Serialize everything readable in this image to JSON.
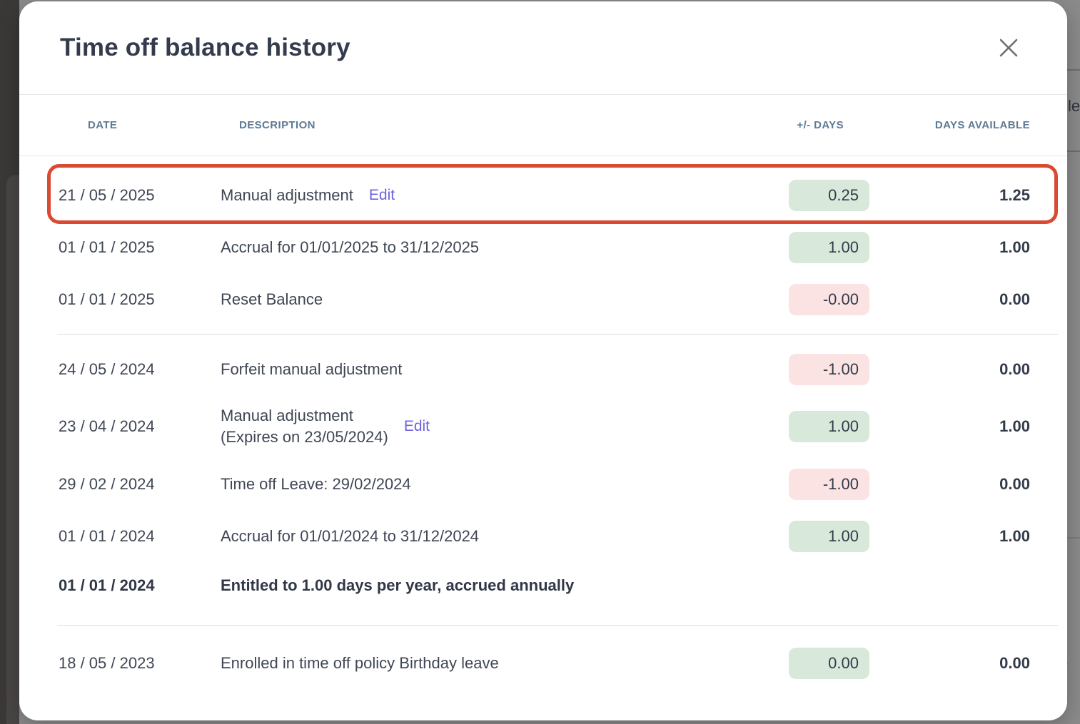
{
  "background": {
    "fragment_text": "le"
  },
  "modal": {
    "title": "Time off balance history",
    "close_icon": "x-icon"
  },
  "table": {
    "headers": {
      "date": "DATE",
      "description": "DESCRIPTION",
      "delta": "+/- DAYS",
      "available": "DAYS AVAILABLE"
    },
    "groups": [
      {
        "rows": [
          {
            "date": "21 / 05 / 2025",
            "description": "Manual adjustment",
            "edit": "Edit",
            "delta": "0.25",
            "delta_type": "positive",
            "available": "1.25",
            "highlighted": true
          },
          {
            "date": "01 / 01 / 2025",
            "description": "Accrual for 01/01/2025 to 31/12/2025",
            "delta": "1.00",
            "delta_type": "positive",
            "available": "1.00"
          },
          {
            "date": "01 / 01 / 2025",
            "description": "Reset Balance",
            "delta": "-0.00",
            "delta_type": "negative",
            "available": "0.00"
          }
        ]
      },
      {
        "rows": [
          {
            "date": "24 / 05 / 2024",
            "description": "Forfeit manual adjustment",
            "delta": "-1.00",
            "delta_type": "negative",
            "available": "0.00"
          },
          {
            "date": "23 / 04 / 2024",
            "description": "Manual adjustment",
            "description_line2": "(Expires on 23/05/2024)",
            "edit": "Edit",
            "delta": "1.00",
            "delta_type": "positive",
            "available": "1.00"
          },
          {
            "date": "29 / 02 / 2024",
            "description": "Time off Leave: 29/02/2024",
            "delta": "-1.00",
            "delta_type": "negative",
            "available": "0.00"
          },
          {
            "date": "01 / 01 / 2024",
            "description": "Accrual for 01/01/2024 to 31/12/2024",
            "delta": "1.00",
            "delta_type": "positive",
            "available": "1.00"
          },
          {
            "date": "01 / 01 / 2024",
            "description": "Entitled to 1.00 days per year, accrued annually",
            "bold": true
          }
        ]
      },
      {
        "rows": [
          {
            "date": "18 / 05 / 2023",
            "description": "Enrolled in time off policy Birthday leave",
            "delta": "0.00",
            "delta_type": "positive",
            "available": "0.00"
          }
        ]
      }
    ]
  },
  "colors": {
    "positive_badge_bg": "#d8e9db",
    "negative_badge_bg": "#fbe3e4",
    "highlight_border": "#da4a33",
    "edit_link": "#6c63e0",
    "header_text": "#5d7a94",
    "backdrop_left": "#3b3838",
    "backdrop_right": "#8b8b8b"
  }
}
